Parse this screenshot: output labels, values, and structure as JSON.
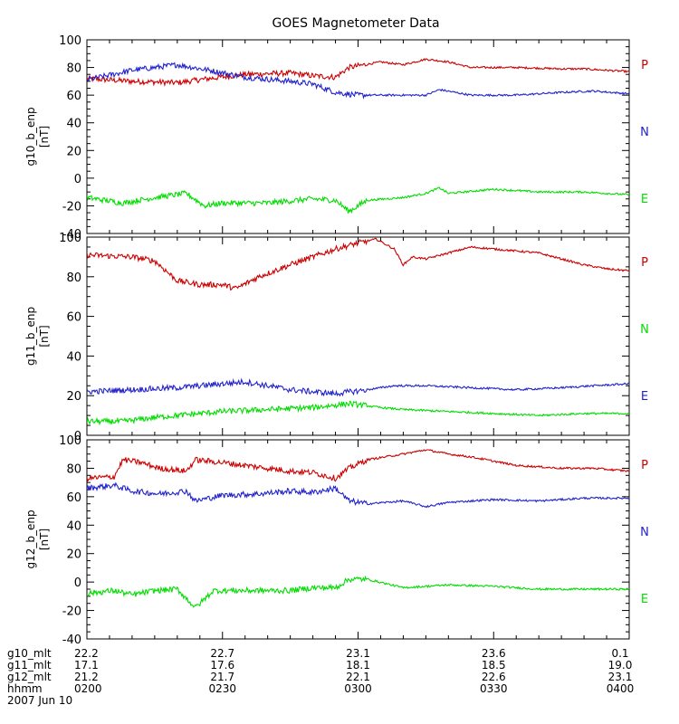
{
  "chart_data": {
    "type": "line",
    "title": "GOES Magnetometer Data",
    "x_ticks": [
      "0200",
      "0230",
      "0300",
      "0330",
      "0400"
    ],
    "footer": {
      "rows": [
        {
          "label": "g10_mlt",
          "values": [
            "22.2",
            "22.7",
            "23.1",
            "23.6",
            "0.1"
          ]
        },
        {
          "label": "g11_mlt",
          "values": [
            "17.1",
            "17.6",
            "18.1",
            "18.5",
            "19.0"
          ]
        },
        {
          "label": "g12_mlt",
          "values": [
            "21.2",
            "21.7",
            "22.1",
            "22.6",
            "23.1"
          ]
        },
        {
          "label": "hhmm",
          "values": [
            "0200",
            "0230",
            "0300",
            "0330",
            "0400"
          ]
        }
      ],
      "date": "2007 Jun 10"
    },
    "panels": [
      {
        "ylabel": "g10_b_enp",
        "yunit": "[nT]",
        "ylim": [
          -40,
          100
        ],
        "yticks": [
          -40,
          -20,
          0,
          20,
          40,
          60,
          80,
          100
        ],
        "series": [
          {
            "name": "P",
            "color": "#cc0000",
            "points": [
              [
                0,
                72
              ],
              [
                10,
                70
              ],
              [
                20,
                69
              ],
              [
                27,
                72
              ],
              [
                35,
                75
              ],
              [
                45,
                76
              ],
              [
                50,
                74
              ],
              [
                55,
                73
              ],
              [
                58,
                80
              ],
              [
                65,
                84
              ],
              [
                70,
                82
              ],
              [
                75,
                86
              ],
              [
                80,
                84
              ],
              [
                85,
                80
              ],
              [
                95,
                80
              ],
              [
                105,
                79
              ],
              [
                110,
                79
              ],
              [
                120,
                77
              ]
            ]
          },
          {
            "name": "N",
            "color": "#2222cc",
            "points": [
              [
                0,
                71
              ],
              [
                10,
                78
              ],
              [
                20,
                82
              ],
              [
                27,
                78
              ],
              [
                35,
                73
              ],
              [
                45,
                70
              ],
              [
                50,
                68
              ],
              [
                55,
                62
              ],
              [
                60,
                60
              ],
              [
                70,
                60
              ],
              [
                75,
                60
              ],
              [
                78,
                64
              ],
              [
                85,
                60
              ],
              [
                95,
                60
              ],
              [
                105,
                62
              ],
              [
                112,
                63
              ],
              [
                120,
                61
              ]
            ]
          },
          {
            "name": "E",
            "color": "#00dd00",
            "points": [
              [
                0,
                -14
              ],
              [
                8,
                -18
              ],
              [
                15,
                -14
              ],
              [
                22,
                -11
              ],
              [
                26,
                -20
              ],
              [
                30,
                -18
              ],
              [
                40,
                -18
              ],
              [
                50,
                -15
              ],
              [
                55,
                -16
              ],
              [
                58,
                -24
              ],
              [
                62,
                -16
              ],
              [
                70,
                -14
              ],
              [
                75,
                -11
              ],
              [
                78,
                -7
              ],
              [
                80,
                -11
              ],
              [
                90,
                -8
              ],
              [
                100,
                -10
              ],
              [
                110,
                -10
              ],
              [
                120,
                -12
              ]
            ]
          }
        ]
      },
      {
        "ylabel": "g11_b_enp",
        "yunit": "[nT]",
        "ylim": [
          0,
          100
        ],
        "yticks": [
          0,
          20,
          40,
          60,
          80,
          100
        ],
        "series": [
          {
            "name": "P",
            "color": "#cc0000",
            "points": [
              [
                0,
                91
              ],
              [
                10,
                90
              ],
              [
                15,
                88
              ],
              [
                20,
                78
              ],
              [
                25,
                76
              ],
              [
                30,
                76
              ],
              [
                33,
                74
              ],
              [
                38,
                80
              ],
              [
                45,
                86
              ],
              [
                50,
                90
              ],
              [
                55,
                94
              ],
              [
                60,
                97
              ],
              [
                64,
                99
              ],
              [
                68,
                94
              ],
              [
                70,
                86
              ],
              [
                72,
                90
              ],
              [
                75,
                89
              ],
              [
                80,
                92
              ],
              [
                85,
                95
              ],
              [
                90,
                94
              ],
              [
                95,
                93
              ],
              [
                100,
                92
              ],
              [
                105,
                89
              ],
              [
                110,
                86
              ],
              [
                115,
                84
              ],
              [
                120,
                83
              ]
            ]
          },
          {
            "name": "N",
            "color": "#00dd00",
            "points": [
              [
                0,
                7
              ],
              [
                8,
                7
              ],
              [
                15,
                9
              ],
              [
                20,
                10
              ],
              [
                30,
                12
              ],
              [
                40,
                13
              ],
              [
                50,
                14
              ],
              [
                58,
                16
              ],
              [
                65,
                14
              ],
              [
                70,
                13
              ],
              [
                80,
                12
              ],
              [
                90,
                11
              ],
              [
                100,
                10
              ],
              [
                110,
                11
              ],
              [
                120,
                11
              ]
            ]
          },
          {
            "name": "E",
            "color": "#2222cc",
            "points": [
              [
                0,
                22
              ],
              [
                10,
                23
              ],
              [
                20,
                24
              ],
              [
                30,
                26
              ],
              [
                35,
                27
              ],
              [
                40,
                25
              ],
              [
                45,
                23
              ],
              [
                50,
                22
              ],
              [
                55,
                21
              ],
              [
                62,
                23
              ],
              [
                68,
                25
              ],
              [
                75,
                25
              ],
              [
                85,
                24
              ],
              [
                95,
                23
              ],
              [
                105,
                24
              ],
              [
                112,
                25
              ],
              [
                120,
                26
              ]
            ]
          }
        ]
      },
      {
        "ylabel": "g12_b_enp",
        "yunit": "[nT]",
        "ylim": [
          -40,
          100
        ],
        "yticks": [
          -40,
          -20,
          0,
          20,
          40,
          60,
          80,
          100
        ],
        "series": [
          {
            "name": "P",
            "color": "#cc0000",
            "points": [
              [
                0,
                73
              ],
              [
                6,
                74
              ],
              [
                8,
                86
              ],
              [
                12,
                84
              ],
              [
                16,
                80
              ],
              [
                22,
                78
              ],
              [
                24,
                86
              ],
              [
                30,
                84
              ],
              [
                35,
                82
              ],
              [
                40,
                80
              ],
              [
                45,
                78
              ],
              [
                50,
                77
              ],
              [
                55,
                73
              ],
              [
                58,
                80
              ],
              [
                62,
                86
              ],
              [
                70,
                90
              ],
              [
                75,
                93
              ],
              [
                80,
                90
              ],
              [
                85,
                88
              ],
              [
                90,
                85
              ],
              [
                95,
                82
              ],
              [
                105,
                80
              ],
              [
                112,
                80
              ],
              [
                120,
                78
              ]
            ]
          },
          {
            "name": "N",
            "color": "#2222cc",
            "points": [
              [
                0,
                66
              ],
              [
                6,
                68
              ],
              [
                10,
                64
              ],
              [
                16,
                62
              ],
              [
                22,
                64
              ],
              [
                24,
                57
              ],
              [
                30,
                61
              ],
              [
                38,
                62
              ],
              [
                45,
                64
              ],
              [
                50,
                63
              ],
              [
                55,
                66
              ],
              [
                58,
                57
              ],
              [
                62,
                55
              ],
              [
                70,
                57
              ],
              [
                75,
                53
              ],
              [
                80,
                56
              ],
              [
                90,
                58
              ],
              [
                100,
                57
              ],
              [
                110,
                59
              ],
              [
                120,
                59
              ]
            ]
          },
          {
            "name": "E",
            "color": "#00dd00",
            "points": [
              [
                0,
                -8
              ],
              [
                6,
                -6
              ],
              [
                10,
                -9
              ],
              [
                15,
                -6
              ],
              [
                20,
                -5
              ],
              [
                24,
                -18
              ],
              [
                28,
                -6
              ],
              [
                35,
                -6
              ],
              [
                45,
                -6
              ],
              [
                50,
                -4
              ],
              [
                55,
                -4
              ],
              [
                58,
                2
              ],
              [
                62,
                2
              ],
              [
                70,
                -4
              ],
              [
                80,
                -2
              ],
              [
                90,
                -3
              ],
              [
                100,
                -5
              ],
              [
                110,
                -5
              ],
              [
                120,
                -5
              ]
            ]
          }
        ]
      }
    ]
  }
}
